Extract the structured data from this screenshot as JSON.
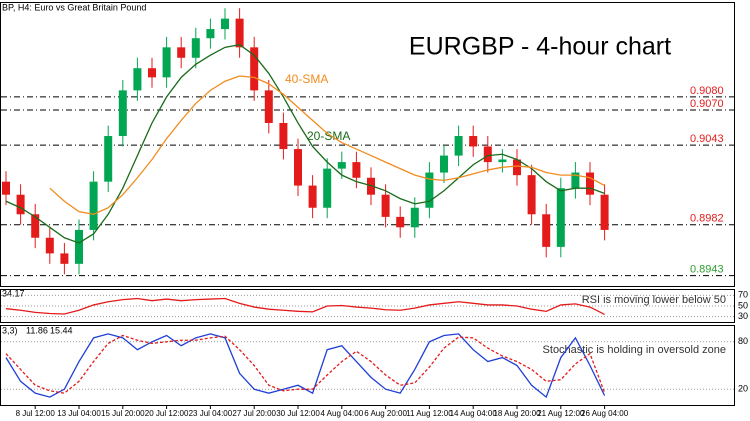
{
  "chart_data": [
    {
      "type": "candlestick",
      "title": "EURGBP - 4-hour chart",
      "header": "BP, H4:  Euro vs Great Britain Pound",
      "ylim": [
        0.8935,
        0.9152
      ],
      "up_color": "#00a651",
      "down_color": "#e41b1b",
      "open": [
        0.9015,
        0.9005,
        0.899,
        0.8972,
        0.896,
        0.8952,
        0.8978,
        0.9015,
        0.905,
        0.9085,
        0.9102,
        0.9095,
        0.9118,
        0.911,
        0.9125,
        0.9132,
        0.914,
        0.9118,
        0.9085,
        0.906,
        0.904,
        0.9012,
        0.8995,
        0.9025,
        0.903,
        0.9018,
        0.9005,
        0.8988,
        0.898,
        0.8995,
        0.9022,
        0.9035,
        0.905,
        0.9042,
        0.903,
        0.9032,
        0.902,
        0.899,
        0.8965,
        0.901,
        0.9022,
        0.9005
      ],
      "high": [
        0.9023,
        0.9013,
        0.8998,
        0.898,
        0.8968,
        0.8986,
        0.9023,
        0.9058,
        0.9093,
        0.911,
        0.911,
        0.9126,
        0.9126,
        0.9133,
        0.914,
        0.9148,
        0.9148,
        0.9126,
        0.9093,
        0.9068,
        0.9048,
        0.902,
        0.9033,
        0.9038,
        0.9038,
        0.9026,
        0.9013,
        0.8996,
        0.9003,
        0.903,
        0.9043,
        0.9058,
        0.9058,
        0.905,
        0.904,
        0.904,
        0.9028,
        0.8998,
        0.9018,
        0.903,
        0.903,
        0.9013
      ],
      "low": [
        0.8997,
        0.8982,
        0.8964,
        0.8952,
        0.8944,
        0.8944,
        0.897,
        0.9007,
        0.9042,
        0.9077,
        0.9087,
        0.9087,
        0.9102,
        0.9102,
        0.9117,
        0.9124,
        0.911,
        0.9077,
        0.9052,
        0.9032,
        0.9004,
        0.8987,
        0.8987,
        0.9017,
        0.901,
        0.8997,
        0.898,
        0.8972,
        0.8972,
        0.8987,
        0.9014,
        0.9027,
        0.9034,
        0.9022,
        0.9022,
        0.9012,
        0.8982,
        0.8957,
        0.8957,
        0.9002,
        0.8997,
        0.897
      ],
      "close": [
        0.9005,
        0.899,
        0.8972,
        0.896,
        0.8952,
        0.8978,
        0.9015,
        0.905,
        0.9085,
        0.9102,
        0.9095,
        0.9118,
        0.911,
        0.9125,
        0.9132,
        0.914,
        0.9118,
        0.9085,
        0.906,
        0.904,
        0.9012,
        0.8995,
        0.9025,
        0.903,
        0.9018,
        0.9005,
        0.8988,
        0.898,
        0.8995,
        0.9022,
        0.9035,
        0.905,
        0.9042,
        0.903,
        0.9032,
        0.902,
        0.899,
        0.8965,
        0.901,
        0.9022,
        0.9005,
        0.8978
      ],
      "series": [
        {
          "name": "20-SMA",
          "color": "#1a6b1a",
          "values": [
            0.9,
            0.8995,
            0.8988,
            0.898,
            0.8972,
            0.8968,
            0.8975,
            0.899,
            0.901,
            0.9035,
            0.906,
            0.908,
            0.9095,
            0.9105,
            0.9112,
            0.9118,
            0.912,
            0.9112,
            0.9098,
            0.908,
            0.906,
            0.9042,
            0.903,
            0.902,
            0.9015,
            0.9012,
            0.9008,
            0.9002,
            0.8998,
            0.9,
            0.9008,
            0.9018,
            0.9028,
            0.9035,
            0.9036,
            0.9032,
            0.9025,
            0.9015,
            0.9008,
            0.901,
            0.901,
            0.9006
          ]
        },
        {
          "name": "40-SMA",
          "color": "#f08c1e",
          "values": [
            null,
            null,
            null,
            0.901,
            0.9,
            0.8992,
            0.899,
            0.8995,
            0.9005,
            0.9018,
            0.9032,
            0.9048,
            0.9062,
            0.9075,
            0.9085,
            0.9092,
            0.9096,
            0.9095,
            0.909,
            0.9082,
            0.9072,
            0.9062,
            0.9052,
            0.9045,
            0.904,
            0.9035,
            0.903,
            0.9025,
            0.902,
            0.9017,
            0.9016,
            0.9018,
            0.9021,
            0.9024,
            0.9026,
            0.9027,
            0.9026,
            0.9022,
            0.902,
            0.902,
            0.9018,
            0.9012
          ]
        }
      ],
      "levels": [
        {
          "value": 0.908,
          "label": "0.9080",
          "color": "#e41b1b"
        },
        {
          "value": 0.907,
          "label": "0.9070",
          "color": "#e41b1b"
        },
        {
          "value": 0.9043,
          "color": "#e41b1b"
        },
        {
          "value": 0.8982,
          "color": "#e41b1b"
        },
        {
          "value": 0.8943,
          "color": "#2e9e2e"
        }
      ]
    },
    {
      "type": "line",
      "annotation": "RSI is moving lower below 50",
      "ylim": [
        20,
        80
      ],
      "yticks": [
        30,
        50,
        70
      ],
      "series": [
        {
          "color": "#e41b1b",
          "values": [
            45,
            42,
            38,
            36,
            35,
            42,
            52,
            58,
            62,
            64,
            60,
            63,
            60,
            62,
            63,
            64,
            55,
            48,
            44,
            42,
            40,
            39,
            50,
            51,
            48,
            46,
            43,
            42,
            46,
            52,
            55,
            58,
            55,
            52,
            52,
            50,
            44,
            40,
            52,
            54,
            48,
            34.17
          ]
        }
      ]
    },
    {
      "type": "line",
      "header": "3,3)",
      "annotation": "Stochastic is holding in oversold zone",
      "ylim": [
        0,
        100
      ],
      "yticks": [
        20,
        80
      ],
      "series": [
        {
          "color": "#1f3fd6",
          "values": [
            60,
            30,
            15,
            10,
            20,
            55,
            85,
            90,
            85,
            70,
            80,
            88,
            75,
            85,
            90,
            85,
            40,
            20,
            15,
            20,
            25,
            15,
            70,
            75,
            55,
            35,
            20,
            15,
            45,
            80,
            88,
            90,
            70,
            55,
            60,
            50,
            25,
            10,
            60,
            85,
            50,
            11.86
          ]
        },
        {
          "color": "#e41b1b",
          "dashed": true,
          "values": [
            65,
            45,
            25,
            18,
            15,
            30,
            55,
            78,
            88,
            82,
            78,
            80,
            82,
            82,
            85,
            87,
            70,
            50,
            25,
            18,
            20,
            20,
            38,
            55,
            68,
            55,
            38,
            25,
            28,
            48,
            72,
            86,
            85,
            72,
            62,
            55,
            45,
            30,
            32,
            52,
            65,
            15.44
          ]
        }
      ],
      "xticks": [
        {
          "value": 2,
          "label": "8 Jul 12:00"
        },
        {
          "value": 5,
          "label": "13 Jul 04:00"
        },
        {
          "value": 8,
          "label": "15 Jul 20:00"
        },
        {
          "value": 11,
          "label": "20 Jul 12:00"
        },
        {
          "value": 14,
          "label": "23 Jul 04:00"
        },
        {
          "value": 17,
          "label": "27 Jul 20:00"
        },
        {
          "value": 20,
          "label": "30 Jul 12:00"
        },
        {
          "value": 23,
          "label": "4 Aug 04:00"
        },
        {
          "value": 26,
          "label": "6 Aug 20:00"
        },
        {
          "value": 29,
          "label": "11 Aug 12:00"
        },
        {
          "value": 32,
          "label": "14 Aug 04:00"
        },
        {
          "value": 35,
          "label": "18 Aug 20:00"
        },
        {
          "value": 38,
          "label": "21 Aug 12:00"
        },
        {
          "value": 41,
          "label": "26 Aug 04:00"
        }
      ]
    }
  ]
}
